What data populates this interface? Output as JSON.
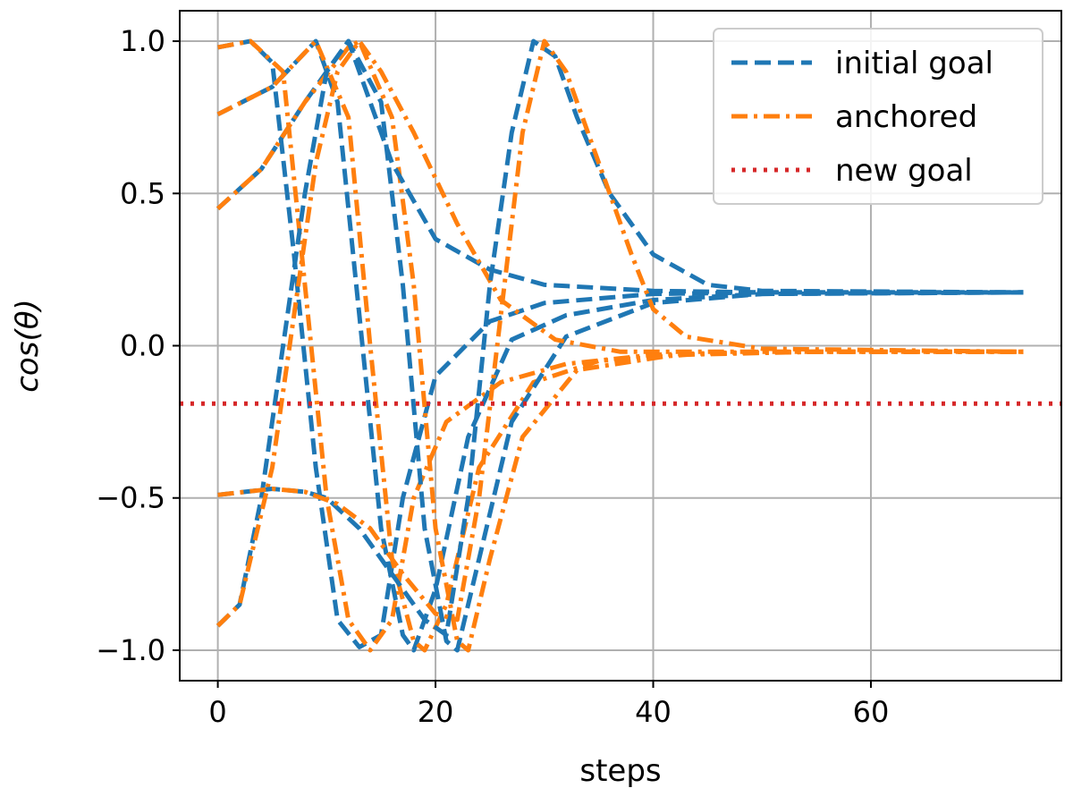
{
  "chart_data": {
    "type": "line",
    "xlabel": "steps",
    "ylabel": "cos(θ)",
    "xlim": [
      -3.5,
      77.5
    ],
    "ylim": [
      -1.1,
      1.1
    ],
    "xticks": [
      0,
      20,
      40,
      60
    ],
    "yticks": [
      1.0,
      0.5,
      0.0,
      -0.5,
      -1.0
    ],
    "xtick_labels": [
      "0",
      "20",
      "40",
      "60"
    ],
    "ytick_labels": [
      "1.0",
      "0.5",
      "0.0",
      "−0.5",
      "−1.0"
    ],
    "grid": true,
    "legend_position": "top-right",
    "legend": [
      {
        "label": "initial goal",
        "style": "dashed",
        "color": "#1f77b4"
      },
      {
        "label": "anchored",
        "style": "dashdot",
        "color": "#ff7f0e"
      },
      {
        "label": "new goal",
        "style": "dotted",
        "color": "#d62728"
      }
    ],
    "series": [
      {
        "style": "dashed",
        "color": "#1f77b4",
        "points": [
          [
            0,
            0.98
          ],
          [
            3,
            1.0
          ],
          [
            5,
            0.93
          ],
          [
            7,
            0.3
          ],
          [
            9,
            -0.4
          ],
          [
            11,
            -0.9
          ],
          [
            13,
            -0.99
          ],
          [
            15,
            -0.95
          ],
          [
            17,
            -0.5
          ],
          [
            20,
            -0.1
          ],
          [
            25,
            0.08
          ],
          [
            30,
            0.14
          ],
          [
            40,
            0.17
          ],
          [
            50,
            0.175
          ],
          [
            74,
            0.175
          ]
        ]
      },
      {
        "style": "dashdot",
        "color": "#ff7f0e",
        "points": [
          [
            0,
            0.98
          ],
          [
            3,
            1.0
          ],
          [
            6,
            0.9
          ],
          [
            8,
            0.2
          ],
          [
            10,
            -0.5
          ],
          [
            12,
            -0.9
          ],
          [
            14,
            -1.0
          ],
          [
            16,
            -0.9
          ],
          [
            18,
            -0.5
          ],
          [
            21,
            -0.25
          ],
          [
            26,
            -0.12
          ],
          [
            32,
            -0.06
          ],
          [
            40,
            -0.03
          ],
          [
            50,
            -0.02
          ],
          [
            74,
            -0.02
          ]
        ]
      },
      {
        "style": "dashed",
        "color": "#1f77b4",
        "points": [
          [
            0,
            0.76
          ],
          [
            5,
            0.85
          ],
          [
            9,
            1.0
          ],
          [
            11,
            0.8
          ],
          [
            13,
            0.1
          ],
          [
            15,
            -0.6
          ],
          [
            17,
            -0.95
          ],
          [
            18,
            -1.0
          ],
          [
            20,
            -0.8
          ],
          [
            23,
            -0.3
          ],
          [
            27,
            0.02
          ],
          [
            32,
            0.1
          ],
          [
            40,
            0.15
          ],
          [
            50,
            0.17
          ],
          [
            74,
            0.175
          ]
        ]
      },
      {
        "style": "dashdot",
        "color": "#ff7f0e",
        "points": [
          [
            0,
            0.76
          ],
          [
            5,
            0.85
          ],
          [
            9,
            1.0
          ],
          [
            12,
            0.75
          ],
          [
            14,
            0.0
          ],
          [
            16,
            -0.7
          ],
          [
            18,
            -0.97
          ],
          [
            19,
            -1.0
          ],
          [
            21,
            -0.85
          ],
          [
            24,
            -0.4
          ],
          [
            29,
            -0.12
          ],
          [
            35,
            -0.05
          ],
          [
            45,
            -0.025
          ],
          [
            55,
            -0.02
          ],
          [
            74,
            -0.02
          ]
        ]
      },
      {
        "style": "dashed",
        "color": "#1f77b4",
        "points": [
          [
            0,
            0.45
          ],
          [
            4,
            0.58
          ],
          [
            8,
            0.8
          ],
          [
            12,
            1.0
          ],
          [
            15,
            0.8
          ],
          [
            17,
            0.2
          ],
          [
            19,
            -0.6
          ],
          [
            21,
            -0.97
          ],
          [
            22,
            -1.0
          ],
          [
            24,
            -0.7
          ],
          [
            27,
            -0.25
          ],
          [
            32,
            0.03
          ],
          [
            40,
            0.14
          ],
          [
            50,
            0.17
          ],
          [
            74,
            0.175
          ]
        ]
      },
      {
        "style": "dashdot",
        "color": "#ff7f0e",
        "points": [
          [
            0,
            0.45
          ],
          [
            4,
            0.58
          ],
          [
            8,
            0.8
          ],
          [
            12,
            0.98
          ],
          [
            13,
            1.0
          ],
          [
            16,
            0.75
          ],
          [
            18,
            0.2
          ],
          [
            20,
            -0.6
          ],
          [
            22,
            -0.97
          ],
          [
            23,
            -1.0
          ],
          [
            25,
            -0.7
          ],
          [
            28,
            -0.3
          ],
          [
            33,
            -0.08
          ],
          [
            42,
            -0.03
          ],
          [
            55,
            -0.02
          ],
          [
            74,
            -0.02
          ]
        ]
      },
      {
        "style": "dashed",
        "color": "#1f77b4",
        "points": [
          [
            0,
            -0.92
          ],
          [
            2,
            -0.85
          ],
          [
            4,
            -0.5
          ],
          [
            6,
            0.0
          ],
          [
            8,
            0.5
          ],
          [
            10,
            0.9
          ],
          [
            12,
            1.0
          ],
          [
            14,
            0.8
          ],
          [
            16,
            0.6
          ],
          [
            20,
            0.35
          ],
          [
            25,
            0.25
          ],
          [
            30,
            0.2
          ],
          [
            40,
            0.18
          ],
          [
            50,
            0.175
          ],
          [
            74,
            0.175
          ]
        ]
      },
      {
        "style": "dashdot",
        "color": "#ff7f0e",
        "points": [
          [
            0,
            -0.92
          ],
          [
            2,
            -0.85
          ],
          [
            5,
            -0.4
          ],
          [
            7,
            0.1
          ],
          [
            9,
            0.6
          ],
          [
            11,
            0.9
          ],
          [
            13,
            1.0
          ],
          [
            15,
            0.9
          ],
          [
            18,
            0.7
          ],
          [
            22,
            0.4
          ],
          [
            26,
            0.15
          ],
          [
            31,
            0.02
          ],
          [
            37,
            -0.02
          ],
          [
            45,
            -0.02
          ],
          [
            74,
            -0.02
          ]
        ]
      },
      {
        "style": "dashed",
        "color": "#1f77b4",
        "points": [
          [
            0,
            -0.49
          ],
          [
            5,
            -0.47
          ],
          [
            8,
            -0.48
          ],
          [
            10,
            -0.5
          ],
          [
            13,
            -0.6
          ],
          [
            16,
            -0.75
          ],
          [
            19,
            -0.9
          ],
          [
            21,
            -0.95
          ],
          [
            23,
            -0.5
          ],
          [
            25,
            0.2
          ],
          [
            27,
            0.7
          ],
          [
            29,
            1.0
          ],
          [
            31,
            0.95
          ],
          [
            33,
            0.75
          ],
          [
            36,
            0.5
          ],
          [
            40,
            0.3
          ],
          [
            45,
            0.2
          ],
          [
            50,
            0.18
          ],
          [
            74,
            0.175
          ]
        ]
      },
      {
        "style": "dashdot",
        "color": "#ff7f0e",
        "points": [
          [
            0,
            -0.49
          ],
          [
            5,
            -0.47
          ],
          [
            8,
            -0.48
          ],
          [
            11,
            -0.52
          ],
          [
            14,
            -0.6
          ],
          [
            17,
            -0.75
          ],
          [
            20,
            -0.88
          ],
          [
            22,
            -0.9
          ],
          [
            24,
            -0.5
          ],
          [
            26,
            0.1
          ],
          [
            28,
            0.7
          ],
          [
            30,
            1.0
          ],
          [
            32,
            0.9
          ],
          [
            35,
            0.6
          ],
          [
            38,
            0.3
          ],
          [
            40,
            0.12
          ],
          [
            43,
            0.03
          ],
          [
            50,
            -0.01
          ],
          [
            74,
            -0.02
          ]
        ]
      },
      {
        "style": "dotted",
        "color": "#d62728",
        "points": [
          [
            -3.5,
            -0.19
          ],
          [
            77.5,
            -0.19
          ]
        ]
      }
    ]
  }
}
